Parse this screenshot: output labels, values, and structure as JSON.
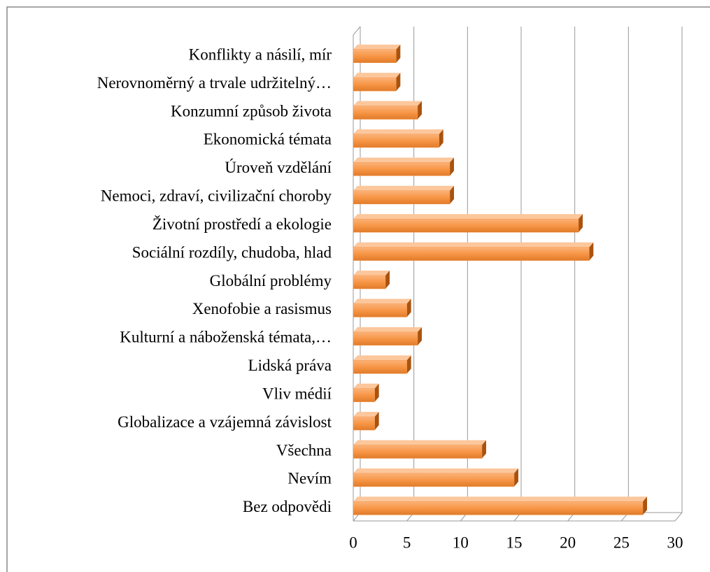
{
  "chart_data": {
    "type": "bar",
    "orientation": "horizontal",
    "categories": [
      "Konflikty a násilí, mír",
      "Nerovnoměrný a trvale udržitelný…",
      "Konzumní způsob života",
      "Ekonomická témata",
      "Úroveň vzdělání",
      "Nemoci, zdraví, civilizační choroby",
      "Životní prostředí a ekologie",
      "Sociální rozdíly, chudoba, hlad",
      "Globální problémy",
      "Xenofobie a rasismus",
      "Kulturní a náboženská témata,…",
      "Lidská práva",
      "Vliv médií",
      "Globalizace a vzájemná závislost",
      "Všechna",
      "Nevím",
      "Bez odpovědi"
    ],
    "values": [
      4,
      4,
      6,
      8,
      9,
      9,
      21,
      22,
      3,
      5,
      6,
      5,
      2,
      2,
      12,
      15,
      27
    ],
    "color": "#f79646",
    "xlim": [
      0,
      30
    ],
    "xticks": [
      0,
      5,
      10,
      15,
      20,
      25,
      30
    ],
    "grid": true
  }
}
